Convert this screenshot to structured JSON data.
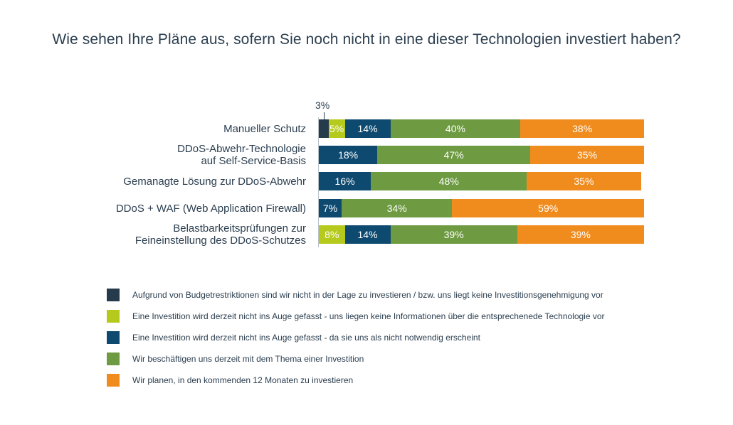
{
  "chart_data": {
    "type": "bar",
    "orientation": "horizontal",
    "stacked": true,
    "title": "Wie sehen Ihre Pläne aus, sofern Sie noch nicht in eine dieser Technologien investiert haben?",
    "categories": [
      "Manueller Schutz",
      "DDoS-Abwehr-Technologie auf Self-Service-Basis",
      "Gemanagte Lösung zur DDoS-Abwehr",
      "DDoS + WAF (Web Application Firewall)",
      "Belastbarkeitsprüfungen zur Feineinstellung des DDoS-Schutzes"
    ],
    "category_lines": [
      [
        "Manueller Schutz"
      ],
      [
        "DDoS-Abwehr-Technologie",
        "auf Self-Service-Basis"
      ],
      [
        "Gemanagte Lösung zur DDoS-Abwehr"
      ],
      [
        "DDoS + WAF (Web Application Firewall)"
      ],
      [
        "Belastbarkeitsprüfungen zur",
        "Feineinstellung des DDoS-Schutzes"
      ]
    ],
    "series": [
      {
        "name": "Aufgrund von Budgetrestriktionen sind wir nicht in der Lage zu investieren / bzw. uns liegt keine Investitionsgenehmigung vor",
        "color": "#253a4a",
        "label_color": "#2b3e4f",
        "values": [
          3,
          0,
          0,
          0,
          0
        ],
        "labels": [
          "3%",
          "",
          "",
          "",
          ""
        ]
      },
      {
        "name": "Eine Investition wird derzeit nicht ins Auge gefasst - uns liegen keine Informationen über die entsprechenede Technologie vor",
        "color": "#b5ca1c",
        "label_color": "#ffffff",
        "values": [
          5,
          0,
          0,
          0,
          8
        ],
        "labels": [
          "5%",
          "",
          "",
          "",
          "8%"
        ]
      },
      {
        "name": "Eine Investition wird derzeit nicht ins Auge gefasst - da sie uns als nicht notwendig erscheint",
        "color": "#0e4a70",
        "label_color": "#ffffff",
        "values": [
          14,
          18,
          16,
          7,
          14
        ],
        "labels": [
          "14%",
          "18%",
          "16%",
          "7%",
          "14%"
        ]
      },
      {
        "name": "Wir beschäftigen uns derzeit mit dem Thema einer Investition",
        "color": "#6e9b41",
        "label_color": "#ffffff",
        "values": [
          40,
          47,
          48,
          34,
          39
        ],
        "labels": [
          "40%",
          "47%",
          "48%",
          "34%",
          "39%"
        ]
      },
      {
        "name": "Wir planen, in den kommenden 12 Monaten zu investieren",
        "color": "#f08c1e",
        "label_color": "#ffffff",
        "values": [
          38,
          35,
          35,
          59,
          39
        ],
        "labels": [
          "38%",
          "35%",
          "35%",
          "59%",
          "39%"
        ]
      }
    ],
    "xlim": [
      0,
      100
    ],
    "legend_position": "bottom",
    "callout": {
      "category": 0,
      "series": 0,
      "label": "3%"
    }
  }
}
